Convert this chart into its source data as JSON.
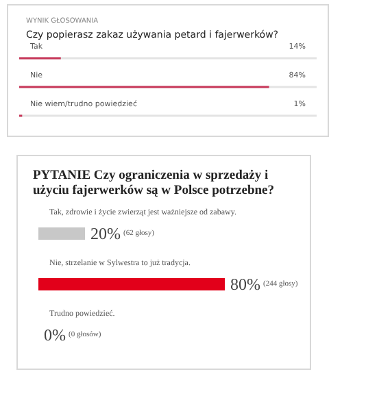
{
  "chart_data": [
    {
      "type": "bar",
      "orientation": "horizontal",
      "subtitle": "WYNIK GŁOSOWANIA",
      "title": "Czy popierasz zakaz używania petard i fajerwerków?",
      "categories": [
        "Tak",
        "Nie",
        "Nie wiem/trudno powiedzieć"
      ],
      "values": [
        14,
        84,
        1
      ],
      "value_labels": [
        "14%",
        "84%",
        "1%"
      ],
      "color": "#c8385a",
      "xlim": [
        0,
        100
      ]
    },
    {
      "type": "bar",
      "orientation": "horizontal",
      "title": "PYTANIE Czy ograniczenia w sprzedaży i użyciu fajerwerków są w Polsce potrzebne?",
      "categories": [
        "Tak, zdrowie i życie zwierząt jest ważniejsze od zabawy.",
        "Nie, strzelanie w Sylwestra to już tradycja.",
        "Trudno powiedzieć."
      ],
      "values": [
        20,
        80,
        0
      ],
      "value_labels": [
        "20% (62 głosy)",
        "80% (244 głosy)",
        "0% (0 głosów)"
      ],
      "colors": [
        "#c8c8c8",
        "#e2001a",
        "#c8c8c8"
      ]
    }
  ]
}
